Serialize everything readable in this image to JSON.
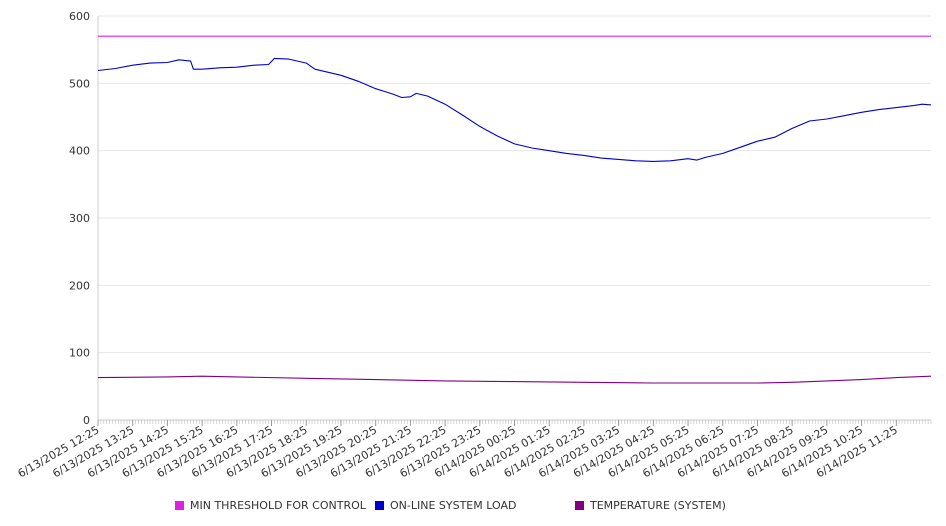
{
  "chart_data": {
    "type": "line",
    "title": "",
    "xlabel": "",
    "ylabel": "",
    "ylim": [
      0,
      600
    ],
    "y_ticks": [
      0,
      100,
      200,
      300,
      400,
      500,
      600
    ],
    "grid": true,
    "legend_position": "bottom",
    "x_tick_labels": [
      "6/13/2025 12:25",
      "6/13/2025 13:25",
      "6/13/2025 14:25",
      "6/13/2025 15:25",
      "6/13/2025 16:25",
      "6/13/2025 17:25",
      "6/13/2025 18:25",
      "6/13/2025 19:25",
      "6/13/2025 20:25",
      "6/13/2025 21:25",
      "6/13/2025 22:25",
      "6/13/2025 23:25",
      "6/14/2025 00:25",
      "6/14/2025 01:25",
      "6/14/2025 02:25",
      "6/14/2025 03:25",
      "6/14/2025 04:25",
      "6/14/2025 05:25",
      "6/14/2025 06:25",
      "6/14/2025 07:25",
      "6/14/2025 08:25",
      "6/14/2025 09:25",
      "6/14/2025 10:25",
      "6/14/2025 11:25"
    ],
    "x_range": [
      "6/13/2025 12:25",
      "6/14/2025 12:25"
    ],
    "series": [
      {
        "name": "MIN THRESHOLD FOR CONTROL",
        "color": "#e020e0",
        "points": [
          [
            "6/13/2025 12:25",
            570
          ],
          [
            "6/14/2025 12:25",
            570
          ]
        ]
      },
      {
        "name": "ON-LINE SYSTEM LOAD",
        "color": "#0000cc",
        "points": [
          [
            "6/13/2025 12:25",
            519
          ],
          [
            "6/13/2025 12:55",
            522
          ],
          [
            "6/13/2025 13:25",
            527
          ],
          [
            "6/13/2025 13:55",
            530
          ],
          [
            "6/13/2025 14:25",
            531
          ],
          [
            "6/13/2025 14:45",
            535
          ],
          [
            "6/13/2025 15:05",
            533
          ],
          [
            "6/13/2025 15:10",
            521
          ],
          [
            "6/13/2025 15:25",
            521
          ],
          [
            "6/13/2025 15:55",
            523
          ],
          [
            "6/13/2025 16:25",
            524
          ],
          [
            "6/13/2025 16:55",
            527
          ],
          [
            "6/13/2025 17:20",
            528
          ],
          [
            "6/13/2025 17:30",
            537
          ],
          [
            "6/13/2025 17:55",
            536
          ],
          [
            "6/13/2025 18:25",
            530
          ],
          [
            "6/13/2025 18:40",
            521
          ],
          [
            "6/13/2025 19:25",
            512
          ],
          [
            "6/13/2025 19:55",
            503
          ],
          [
            "6/13/2025 20:25",
            492
          ],
          [
            "6/13/2025 20:55",
            484
          ],
          [
            "6/13/2025 21:10",
            479
          ],
          [
            "6/13/2025 21:25",
            480
          ],
          [
            "6/13/2025 21:35",
            485
          ],
          [
            "6/13/2025 21:55",
            481
          ],
          [
            "6/13/2025 22:25",
            469
          ],
          [
            "6/13/2025 22:55",
            453
          ],
          [
            "6/13/2025 23:25",
            436
          ],
          [
            "6/13/2025 23:55",
            422
          ],
          [
            "6/14/2025 00:25",
            410
          ],
          [
            "6/14/2025 00:55",
            404
          ],
          [
            "6/14/2025 01:25",
            400
          ],
          [
            "6/14/2025 01:55",
            396
          ],
          [
            "6/14/2025 02:25",
            393
          ],
          [
            "6/14/2025 02:55",
            389
          ],
          [
            "6/14/2025 03:25",
            387
          ],
          [
            "6/14/2025 03:55",
            385
          ],
          [
            "6/14/2025 04:25",
            384
          ],
          [
            "6/14/2025 04:55",
            385
          ],
          [
            "6/14/2025 05:25",
            388
          ],
          [
            "6/14/2025 05:40",
            386
          ],
          [
            "6/14/2025 05:55",
            390
          ],
          [
            "6/14/2025 06:25",
            396
          ],
          [
            "6/14/2025 06:55",
            405
          ],
          [
            "6/14/2025 07:25",
            414
          ],
          [
            "6/14/2025 07:55",
            420
          ],
          [
            "6/14/2025 08:25",
            433
          ],
          [
            "6/14/2025 08:55",
            444
          ],
          [
            "6/14/2025 09:25",
            447
          ],
          [
            "6/14/2025 09:55",
            452
          ],
          [
            "6/14/2025 10:25",
            457
          ],
          [
            "6/14/2025 10:55",
            461
          ],
          [
            "6/14/2025 11:25",
            464
          ],
          [
            "6/14/2025 11:55",
            467
          ],
          [
            "6/14/2025 12:10",
            469
          ],
          [
            "6/14/2025 12:25",
            468
          ]
        ]
      },
      {
        "name": "TEMPERATURE (SYSTEM)",
        "color": "#800080",
        "points": [
          [
            "6/13/2025 12:25",
            63
          ],
          [
            "6/13/2025 14:25",
            64
          ],
          [
            "6/13/2025 15:25",
            65
          ],
          [
            "6/13/2025 16:25",
            64
          ],
          [
            "6/13/2025 18:25",
            62
          ],
          [
            "6/13/2025 20:25",
            60
          ],
          [
            "6/13/2025 22:25",
            58
          ],
          [
            "6/14/2025 00:25",
            57
          ],
          [
            "6/14/2025 02:25",
            56
          ],
          [
            "6/14/2025 04:25",
            55
          ],
          [
            "6/14/2025 06:25",
            55
          ],
          [
            "6/14/2025 07:25",
            55
          ],
          [
            "6/14/2025 08:25",
            56
          ],
          [
            "6/14/2025 09:25",
            58
          ],
          [
            "6/14/2025 10:25",
            60
          ],
          [
            "6/14/2025 11:25",
            63
          ],
          [
            "6/14/2025 12:25",
            65
          ]
        ]
      }
    ]
  }
}
